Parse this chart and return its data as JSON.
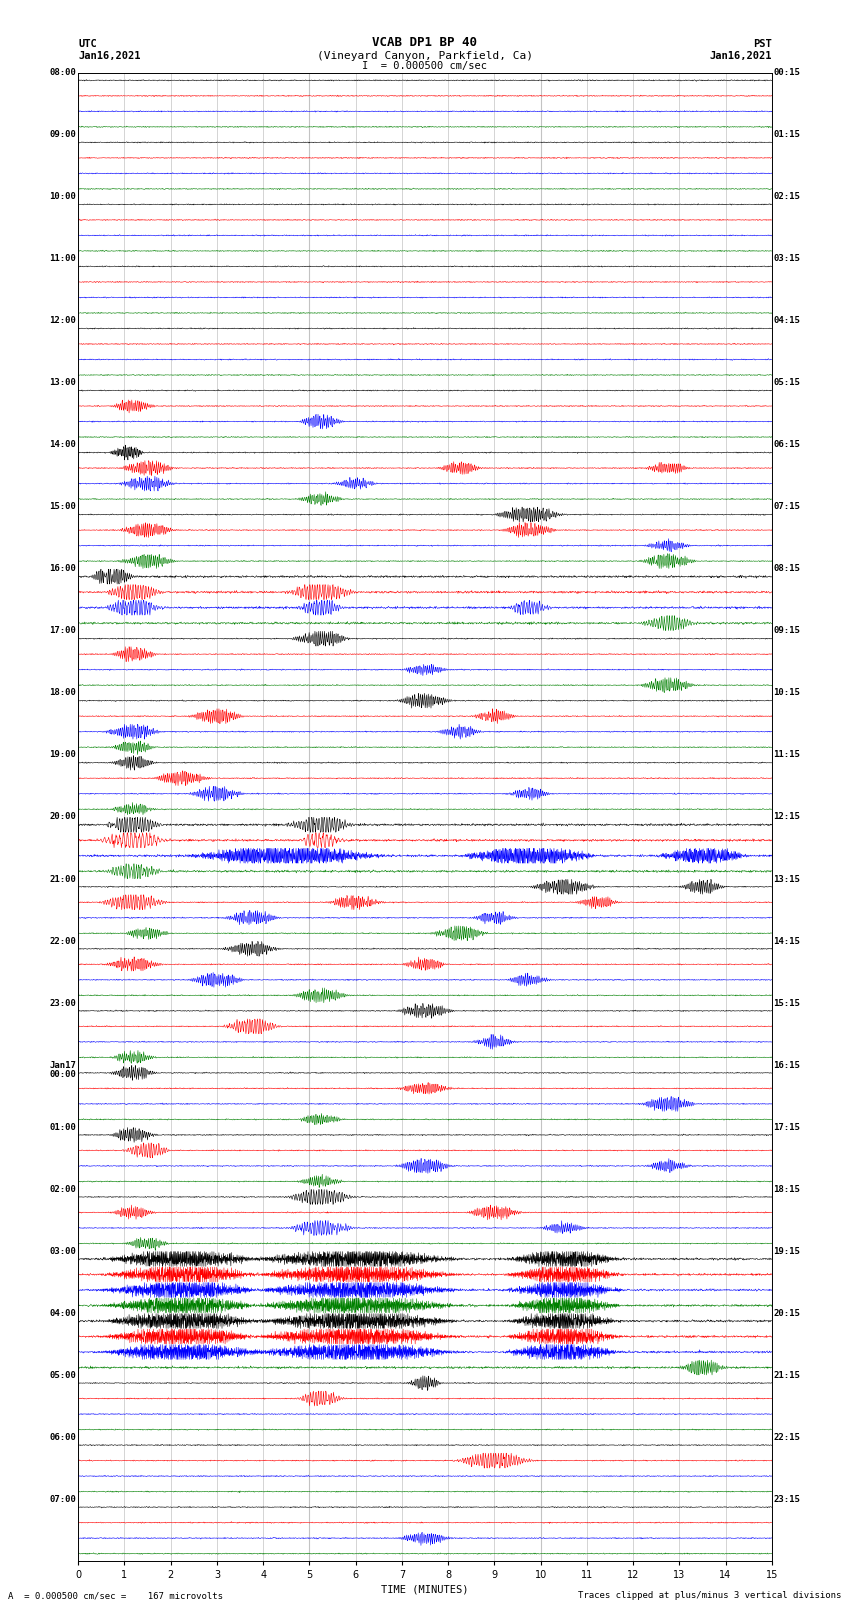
{
  "title_line1": "VCAB DP1 BP 40",
  "title_line2": "(Vineyard Canyon, Parkfield, Ca)",
  "scale_label": "I  = 0.000500 cm/sec",
  "xlabel": "TIME (MINUTES)",
  "footer_left": "A  = 0.000500 cm/sec =    167 microvolts",
  "footer_right": "Traces clipped at plus/minus 3 vertical divisions",
  "left_label_top": "UTC",
  "left_label_date": "Jan16,2021",
  "right_label_top": "PST",
  "right_label_date": "Jan16,2021",
  "utc_labels": [
    "08:00",
    "09:00",
    "10:00",
    "11:00",
    "12:00",
    "13:00",
    "14:00",
    "15:00",
    "16:00",
    "17:00",
    "18:00",
    "19:00",
    "20:00",
    "21:00",
    "22:00",
    "23:00",
    "Jan17\n00:00",
    "01:00",
    "02:00",
    "03:00",
    "04:00",
    "05:00",
    "06:00",
    "07:00"
  ],
  "pst_labels": [
    "00:15",
    "01:15",
    "02:15",
    "03:15",
    "04:15",
    "05:15",
    "06:15",
    "07:15",
    "08:15",
    "09:15",
    "10:15",
    "11:15",
    "12:15",
    "13:15",
    "14:15",
    "15:15",
    "16:15",
    "17:15",
    "18:15",
    "19:15",
    "20:15",
    "21:15",
    "22:15",
    "23:15"
  ],
  "colors": [
    "black",
    "red",
    "blue",
    "green"
  ],
  "n_rows": 96,
  "n_cols": 1800,
  "xmin": 0,
  "xmax": 15,
  "bg_color": "white",
  "grid_color": "#aaaaaa",
  "n_hours": 24,
  "rows_per_hour": 4
}
